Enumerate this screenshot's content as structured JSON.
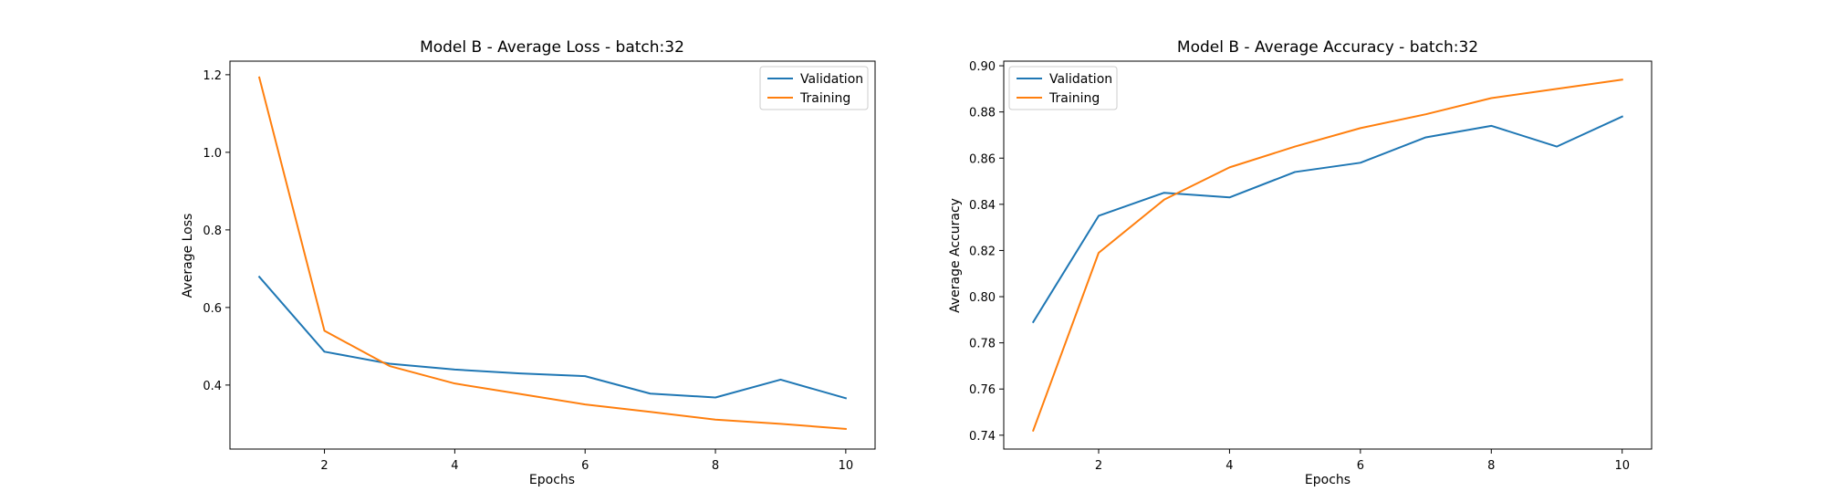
{
  "chart_data": [
    {
      "type": "line",
      "title": "Model B - Average Loss - batch:32",
      "xlabel": "Epochs",
      "ylabel": "Average Loss",
      "x": [
        1,
        2,
        3,
        4,
        5,
        6,
        7,
        8,
        9,
        10
      ],
      "xticks": [
        2,
        4,
        6,
        8,
        10
      ],
      "xlim": [
        0.55,
        10.45
      ],
      "yticks": [
        0.4,
        0.6,
        0.8,
        1.0,
        1.2
      ],
      "ytick_labels": [
        "0.4",
        "0.6",
        "0.8",
        "1.0",
        "1.2"
      ],
      "ylim": [
        0.235,
        1.235
      ],
      "grid": false,
      "legend": "upper right",
      "series": [
        {
          "name": "Validation",
          "color": "#1f77b4",
          "values": [
            0.679,
            0.486,
            0.455,
            0.44,
            0.43,
            0.423,
            0.378,
            0.368,
            0.414,
            0.366
          ]
        },
        {
          "name": "Training",
          "color": "#ff7f0e",
          "values": [
            1.193,
            0.54,
            0.449,
            0.404,
            0.377,
            0.35,
            0.331,
            0.311,
            0.3,
            0.287
          ]
        }
      ]
    },
    {
      "type": "line",
      "title": "Model B - Average Accuracy - batch:32",
      "xlabel": "Epochs",
      "ylabel": "Average Accuracy",
      "x": [
        1,
        2,
        3,
        4,
        5,
        6,
        7,
        8,
        9,
        10
      ],
      "xticks": [
        2,
        4,
        6,
        8,
        10
      ],
      "xlim": [
        0.55,
        10.45
      ],
      "yticks": [
        0.74,
        0.76,
        0.78,
        0.8,
        0.82,
        0.84,
        0.86,
        0.88,
        0.9
      ],
      "ytick_labels": [
        "0.74",
        "0.76",
        "0.78",
        "0.80",
        "0.82",
        "0.84",
        "0.86",
        "0.88",
        "0.90"
      ],
      "ylim": [
        0.734,
        0.902
      ],
      "grid": false,
      "legend": "upper left",
      "series": [
        {
          "name": "Validation",
          "color": "#1f77b4",
          "values": [
            0.789,
            0.835,
            0.845,
            0.843,
            0.854,
            0.858,
            0.869,
            0.874,
            0.865,
            0.878
          ]
        },
        {
          "name": "Training",
          "color": "#ff7f0e",
          "values": [
            0.742,
            0.819,
            0.842,
            0.856,
            0.865,
            0.873,
            0.879,
            0.886,
            0.89,
            0.894
          ]
        }
      ]
    }
  ]
}
